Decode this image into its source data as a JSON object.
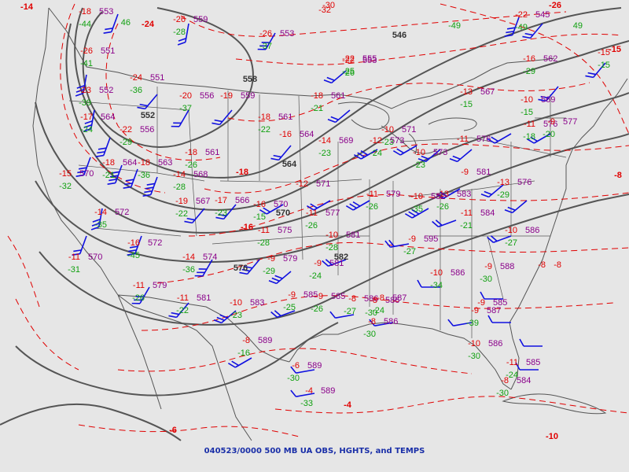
{
  "title": "040523/0000 500 MB UA OBS, HGHTS, and TEMPS",
  "colors": {
    "background": "#e6e6e6",
    "borders": "#555555",
    "height_contours": "#555555",
    "temp_contours": "#e00000",
    "temp_labels": "#e00000",
    "dewpoint_labels": "#10a010",
    "height_labels": "#8a008a",
    "wind_barbs": "#1010e0",
    "caption": "#1a2fa8"
  },
  "contour_labels": [
    {
      "text": "546",
      "kind": "height"
    },
    {
      "text": "552",
      "kind": "height"
    },
    {
      "text": "558",
      "kind": "height"
    },
    {
      "text": "564",
      "kind": "height"
    },
    {
      "text": "570",
      "kind": "height"
    },
    {
      "text": "576",
      "kind": "height"
    },
    {
      "text": "582",
      "kind": "height"
    },
    {
      "text": "-14",
      "kind": "temp"
    },
    {
      "text": "-26",
      "kind": "temp"
    },
    {
      "text": "-24",
      "kind": "temp"
    },
    {
      "text": "-18",
      "kind": "temp"
    },
    {
      "text": "-16",
      "kind": "temp"
    },
    {
      "text": "-15",
      "kind": "temp"
    },
    {
      "text": "-8",
      "kind": "temp"
    },
    {
      "text": "-6",
      "kind": "temp"
    },
    {
      "text": "-4",
      "kind": "temp"
    },
    {
      "text": "-10",
      "kind": "temp"
    }
  ],
  "stations": [
    {
      "temp": "-18",
      "dew": "-44",
      "hgt": "553"
    },
    {
      "temp": "",
      "dew": "46",
      "hgt": ""
    },
    {
      "temp": "-26",
      "dew": "-28",
      "hgt": "559"
    },
    {
      "temp": "-26",
      "dew": "-37",
      "hgt": "553"
    },
    {
      "temp": "-30",
      "dew": "",
      "hgt": ""
    },
    {
      "temp": "-32",
      "dew": "",
      "hgt": ""
    },
    {
      "temp": "",
      "dew": "-49",
      "hgt": ""
    },
    {
      "temp": "-22",
      "dew": "-49",
      "hgt": "545"
    },
    {
      "temp": "",
      "dew": "49",
      "hgt": ""
    },
    {
      "temp": "-26",
      "dew": "-41",
      "hgt": "551"
    },
    {
      "temp": "-24",
      "dew": "-36",
      "hgt": "551"
    },
    {
      "temp": "-22",
      "dew": "-26",
      "hgt": "553"
    },
    {
      "temp": "-22",
      "dew": "-25",
      "hgt": "555"
    },
    {
      "temp": "-16",
      "dew": "-29",
      "hgt": "562"
    },
    {
      "temp": "-15",
      "dew": "-15",
      "hgt": ""
    },
    {
      "temp": "-23",
      "dew": "-39",
      "hgt": "552"
    },
    {
      "temp": "-20",
      "dew": "-37",
      "hgt": "556"
    },
    {
      "temp": "-19",
      "dew": "",
      "hgt": "559"
    },
    {
      "temp": "-18",
      "dew": "-21",
      "hgt": "561"
    },
    {
      "temp": "-13",
      "dew": "-15",
      "hgt": "567"
    },
    {
      "temp": "-10",
      "dew": "-15",
      "hgt": "569"
    },
    {
      "temp": "-17",
      "dew": "-24",
      "hgt": "564"
    },
    {
      "temp": "-22",
      "dew": "-29",
      "hgt": "556"
    },
    {
      "temp": "-18",
      "dew": "-22",
      "hgt": "561"
    },
    {
      "temp": "-16",
      "dew": "",
      "hgt": "564"
    },
    {
      "temp": "-14",
      "dew": "-23",
      "hgt": "569"
    },
    {
      "temp": "-10",
      "dew": "-23",
      "hgt": "571"
    },
    {
      "temp": "-11",
      "dew": "-18",
      "hgt": "576"
    },
    {
      "temp": "-9",
      "dew": "-20",
      "hgt": "577"
    },
    {
      "temp": "-12",
      "dew": "-24",
      "hgt": "573"
    },
    {
      "temp": "-10",
      "dew": "-23",
      "hgt": "573"
    },
    {
      "temp": "-11",
      "dew": "",
      "hgt": "576"
    },
    {
      "temp": "-15",
      "dew": "-32",
      "hgt": "570"
    },
    {
      "temp": "-18",
      "dew": "-21",
      "hgt": "564"
    },
    {
      "temp": "-18",
      "dew": "-26",
      "hgt": "561"
    },
    {
      "temp": "-18",
      "dew": "-36",
      "hgt": "563"
    },
    {
      "temp": "-14",
      "dew": "-28",
      "hgt": "568"
    },
    {
      "temp": "-12",
      "dew": "",
      "hgt": "571"
    },
    {
      "temp": "-9",
      "dew": "",
      "hgt": "581"
    },
    {
      "temp": "-13",
      "dew": "-26",
      "hgt": "583"
    },
    {
      "temp": "-14",
      "dew": "-35",
      "hgt": "572"
    },
    {
      "temp": "-19",
      "dew": "-22",
      "hgt": "567"
    },
    {
      "temp": "-17",
      "dew": "-23",
      "hgt": "566"
    },
    {
      "temp": "-16",
      "dew": "-15",
      "hgt": "570"
    },
    {
      "temp": "-11",
      "dew": "-26",
      "hgt": "577"
    },
    {
      "temp": "-11",
      "dew": "-26",
      "hgt": "579"
    },
    {
      "temp": "-10",
      "dew": "-35",
      "hgt": "582"
    },
    {
      "temp": "-11",
      "dew": "-21",
      "hgt": "584"
    },
    {
      "temp": "-13",
      "dew": "-29",
      "hgt": "576"
    },
    {
      "temp": "-16",
      "dew": "-45",
      "hgt": "572"
    },
    {
      "temp": "-11",
      "dew": "-28",
      "hgt": "575"
    },
    {
      "temp": "-10",
      "dew": "-28",
      "hgt": "581"
    },
    {
      "temp": "-9",
      "dew": "-27",
      "hgt": "595"
    },
    {
      "temp": "-10",
      "dew": "-27",
      "hgt": "586"
    },
    {
      "temp": "-11",
      "dew": "-31",
      "hgt": "570"
    },
    {
      "temp": "-14",
      "dew": "-36",
      "hgt": "574"
    },
    {
      "temp": "-9",
      "dew": "-29",
      "hgt": "579"
    },
    {
      "temp": "-9",
      "dew": "-25",
      "hgt": "585"
    },
    {
      "temp": "-9",
      "dew": "-24",
      "hgt": "581"
    },
    {
      "temp": "-10",
      "dew": "-34",
      "hgt": "586"
    },
    {
      "temp": "-9",
      "dew": "-30",
      "hgt": "588"
    },
    {
      "temp": "-11",
      "dew": "-26",
      "hgt": "579"
    },
    {
      "temp": "-11",
      "dew": "-22",
      "hgt": "581"
    },
    {
      "temp": "-10",
      "dew": "-23",
      "hgt": "583"
    },
    {
      "temp": "-9",
      "dew": "-26",
      "hgt": "585"
    },
    {
      "temp": "-8",
      "dew": "-27",
      "hgt": "586"
    },
    {
      "temp": "-8",
      "dew": "-30",
      "hgt": "586"
    },
    {
      "temp": "-9",
      "dew": "-39",
      "hgt": "587"
    },
    {
      "temp": "-9",
      "dew": "",
      "hgt": "585"
    },
    {
      "temp": "-8",
      "dew": "-24",
      "hgt": "587"
    },
    {
      "temp": "-8",
      "dew": "-30",
      "hgt": "586"
    },
    {
      "temp": "-10",
      "dew": "-30",
      "hgt": "586"
    },
    {
      "temp": "-11",
      "dew": "-24",
      "hgt": "585"
    },
    {
      "temp": "-8",
      "dew": "-16",
      "hgt": "589"
    },
    {
      "temp": "-6",
      "dew": "-30",
      "hgt": "589"
    },
    {
      "temp": "-4",
      "dew": "-33",
      "hgt": "589"
    },
    {
      "temp": "-8",
      "dew": "-30",
      "hgt": "584"
    },
    {
      "temp": "-8",
      "dew": "",
      "hgt": ""
    },
    {
      "temp": "-8",
      "dew": "",
      "hgt": ""
    }
  ]
}
